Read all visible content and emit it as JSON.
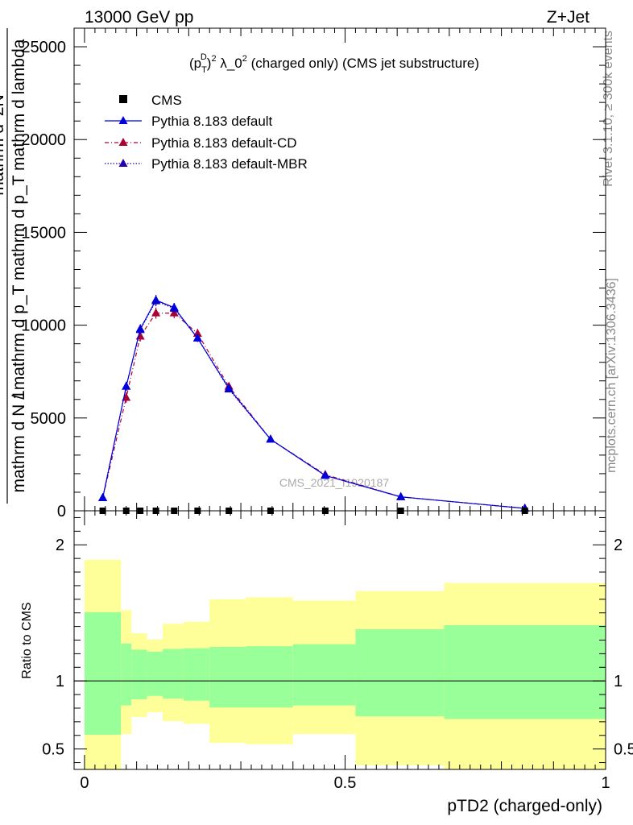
{
  "header": {
    "left_label": "13000 GeV pp",
    "right_label": "Z+Jet"
  },
  "side_labels": {
    "rivet": "Rivet 3.1.10, ≥ 300k events",
    "mcplots": "mcplots.cern.ch [arXiv:1306.3436]"
  },
  "watermark": "CMS_2021_I1920187",
  "chart_data": [
    {
      "type": "line",
      "title": "(p_T^D)^2 λ_0^2 (charged only) (CMS jet substructure)",
      "title_parts": {
        "a": "(p",
        "sub": "T",
        "sup1": "D",
        "b": ")",
        "sup2": "2",
        "c": " λ_0",
        "sup3": "2",
        "d": " (charged only) (CMS jet substructure)"
      },
      "ylabel_line1": "1",
      "ylabel_line2": "mathrm d N / mathrm d p_T mathrm d p_T mathrm d lambda",
      "ylabel_line3": "mathrm d^2N",
      "ylim": [
        0,
        26000
      ],
      "xlim": [
        -0.02,
        1.0
      ],
      "yticks": [
        0,
        5000,
        10000,
        15000,
        20000,
        25000
      ],
      "ytick_labels": [
        "0",
        "5000",
        "10000",
        "15000",
        "20000",
        "25000"
      ],
      "legend_position": "top-left",
      "legend": [
        "CMS",
        "Pythia 8.183 default",
        "Pythia 8.183 default-CD",
        "Pythia 8.183 default-MBR"
      ],
      "colors": {
        "cms": "#000000",
        "default": "#0000dd",
        "cd": "#aa0033",
        "mbr": "#2200aa"
      },
      "cms_x": [
        0.035,
        0.08,
        0.107,
        0.137,
        0.172,
        0.217,
        0.277,
        0.357,
        0.462,
        0.607,
        0.845
      ],
      "series": [
        {
          "name": "Pythia 8.183 default",
          "x": [
            0.035,
            0.08,
            0.107,
            0.137,
            0.172,
            0.217,
            0.277,
            0.357,
            0.462,
            0.607,
            0.845
          ],
          "values": [
            700,
            6700,
            9800,
            11350,
            10950,
            9300,
            6600,
            3850,
            1900,
            750,
            130
          ],
          "errors": [
            60,
            250,
            250,
            280,
            250,
            200,
            150,
            100,
            60,
            40,
            20
          ]
        },
        {
          "name": "Pythia 8.183 default-CD",
          "x": [
            0.035,
            0.08,
            0.107,
            0.137,
            0.172,
            0.217,
            0.277,
            0.357,
            0.462,
            0.607,
            0.845
          ],
          "values": [
            700,
            6100,
            9400,
            10650,
            10650,
            9550,
            6700,
            3850,
            1950,
            750,
            130
          ],
          "errors": [
            60,
            280,
            280,
            300,
            280,
            250,
            170,
            110,
            60,
            40,
            20
          ]
        },
        {
          "name": "Pythia 8.183 default-MBR",
          "x": [
            0.035,
            0.08,
            0.107,
            0.137,
            0.172,
            0.217,
            0.277,
            0.357,
            0.462,
            0.607,
            0.845
          ],
          "values": [
            700,
            6700,
            9750,
            11300,
            10900,
            9300,
            6550,
            3850,
            1900,
            750,
            130
          ],
          "errors": [
            60,
            250,
            250,
            280,
            250,
            200,
            150,
            100,
            60,
            40,
            20
          ]
        }
      ]
    },
    {
      "type": "area",
      "ylabel": "Ratio to CMS",
      "xlabel": "pTD2 (charged-only)",
      "ylim": [
        0.35,
        2.25
      ],
      "xlim": [
        -0.02,
        1.0
      ],
      "yticks": [
        0.5,
        1,
        2
      ],
      "ytick_labels": [
        "0.5",
        "1",
        "2"
      ],
      "xticks": [
        0,
        0.5,
        1
      ],
      "xtick_labels": [
        "0",
        "0.5",
        "1"
      ],
      "reference_line": 1,
      "colors": {
        "inner_band": "#99ff99",
        "outer_band": "#ffff99"
      },
      "bins": [
        0.0,
        0.07,
        0.09,
        0.12,
        0.15,
        0.19,
        0.24,
        0.31,
        0.4,
        0.52,
        0.69,
        1.0
      ],
      "inner_band": {
        "lower": [
          0.605,
          0.82,
          0.865,
          0.89,
          0.87,
          0.855,
          0.805,
          0.805,
          0.82,
          0.74,
          0.72
        ],
        "upper": [
          1.505,
          1.275,
          1.23,
          1.215,
          1.235,
          1.24,
          1.25,
          1.255,
          1.27,
          1.38,
          1.41
        ]
      },
      "outer_band": {
        "lower": [
          0.34,
          0.61,
          0.735,
          0.77,
          0.705,
          0.685,
          0.545,
          0.535,
          0.61,
          0.38,
          0.345
        ],
        "upper": [
          1.89,
          1.52,
          1.35,
          1.305,
          1.42,
          1.435,
          1.6,
          1.615,
          1.59,
          1.66,
          1.72
        ]
      }
    }
  ]
}
